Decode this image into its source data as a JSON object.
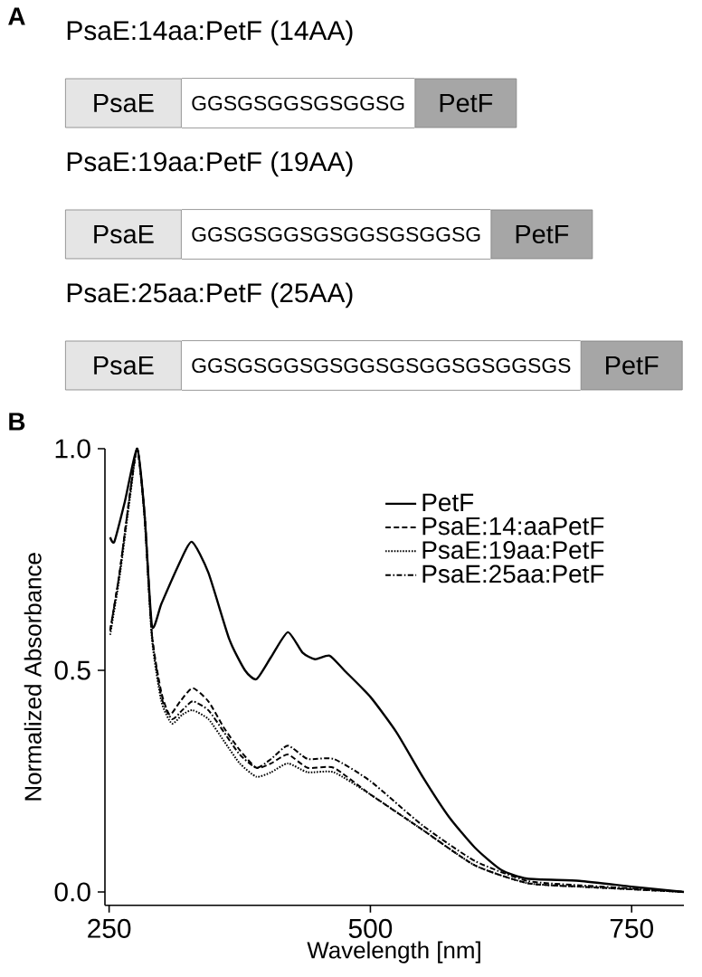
{
  "chart_data": [
    {
      "type": "other",
      "title": "A",
      "annotations": [
        "PsaE:14aa:PetF (14AA)",
        "PsaE",
        "GGSGSGGSGSGGSG",
        "PetF",
        "PsaE:19aa:PetF (19AA)",
        "PsaE",
        "GGSGSGGSGSGGSGSGGSG",
        "PetF",
        "PsaE:25aa:PetF (25AA)",
        "PsaE",
        "GGSGSGGSGSGGSGSGGSGSGGSGS",
        "PetF"
      ]
    },
    {
      "type": "line",
      "title": "B",
      "xlabel": "Wavelength [nm]",
      "ylabel": "Normalized Absorbance",
      "xlim": [
        246,
        800
      ],
      "ylim": [
        -0.03,
        1.0
      ],
      "xticks": [
        250,
        500,
        750
      ],
      "yticks": [
        {
          "value": 0,
          "label": "0.0"
        },
        {
          "value": 0.5,
          "label": "0.5"
        },
        {
          "value": 1,
          "label": "1.0"
        }
      ],
      "legend": "top right",
      "series": [
        {
          "name": "PetF",
          "color": "#000000",
          "line_style": "solid",
          "x": [
            251,
            255,
            265,
            277,
            284,
            291,
            300,
            315,
            329,
            345,
            365,
            380,
            391,
            405,
            421,
            435,
            447,
            461,
            475,
            500,
            525,
            550,
            575,
            600,
            625,
            650,
            700,
            750,
            800
          ],
          "values": [
            0.8,
            0.79,
            0.88,
            1.0,
            0.85,
            0.6,
            0.65,
            0.73,
            0.79,
            0.72,
            0.57,
            0.5,
            0.48,
            0.53,
            0.586,
            0.54,
            0.525,
            0.533,
            0.5,
            0.44,
            0.36,
            0.26,
            0.17,
            0.1,
            0.05,
            0.03,
            0.025,
            0.012,
            0.0
          ]
        },
        {
          "name": "PsaE:14:aaPetF",
          "color": "#000000",
          "line_style": "dashed",
          "x": [
            251,
            260,
            270,
            277,
            284,
            291,
            300,
            308,
            318,
            330,
            345,
            360,
            375,
            391,
            405,
            421,
            440,
            465,
            500,
            550,
            600,
            650,
            700,
            750,
            800
          ],
          "values": [
            0.59,
            0.72,
            0.9,
            1.0,
            0.85,
            0.58,
            0.45,
            0.4,
            0.43,
            0.46,
            0.43,
            0.37,
            0.32,
            0.28,
            0.29,
            0.31,
            0.28,
            0.28,
            0.22,
            0.14,
            0.06,
            0.02,
            0.012,
            0.006,
            0.0
          ]
        },
        {
          "name": "PsaE:19aa:PetF",
          "color": "#000000",
          "line_style": "dotted",
          "x": [
            251,
            260,
            270,
            277,
            284,
            291,
            300,
            310,
            320,
            330,
            345,
            360,
            375,
            391,
            405,
            421,
            440,
            465,
            500,
            550,
            600,
            650,
            700,
            750,
            800
          ],
          "values": [
            0.58,
            0.71,
            0.89,
            1.0,
            0.84,
            0.57,
            0.43,
            0.38,
            0.4,
            0.41,
            0.39,
            0.34,
            0.29,
            0.26,
            0.27,
            0.29,
            0.27,
            0.27,
            0.22,
            0.14,
            0.06,
            0.02,
            0.012,
            0.006,
            0.0
          ]
        },
        {
          "name": "PsaE:25aa:PetF",
          "color": "#000000",
          "line_style": "dashdot",
          "x": [
            251,
            260,
            270,
            277,
            284,
            291,
            300,
            310,
            320,
            330,
            345,
            360,
            375,
            391,
            405,
            421,
            440,
            465,
            500,
            550,
            600,
            650,
            700,
            750,
            800
          ],
          "values": [
            0.59,
            0.72,
            0.9,
            1.0,
            0.85,
            0.58,
            0.44,
            0.39,
            0.41,
            0.43,
            0.41,
            0.36,
            0.31,
            0.28,
            0.3,
            0.33,
            0.3,
            0.3,
            0.25,
            0.15,
            0.07,
            0.025,
            0.015,
            0.008,
            0.0
          ]
        }
      ]
    }
  ]
}
